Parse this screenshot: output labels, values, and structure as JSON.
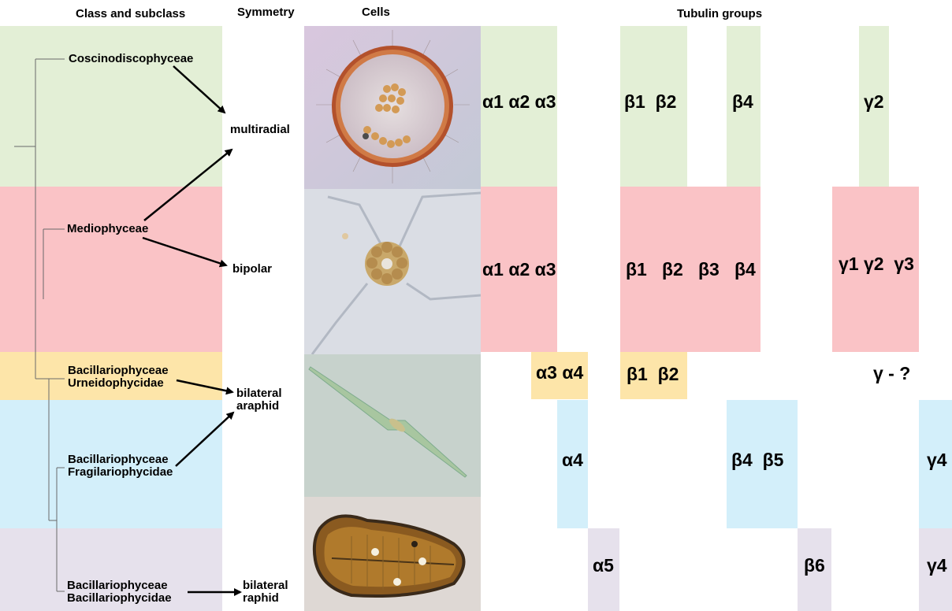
{
  "headers": {
    "class": "Class and subclass",
    "symmetry": "Symmetry",
    "cells": "Cells",
    "tubulin": "Tubulin groups"
  },
  "colors": {
    "green": "#e3efd6",
    "red": "#fac3c6",
    "yellow": "#fde5a9",
    "blue": "#d3effa",
    "purple": "#e6e1ec"
  },
  "classes": {
    "coscino": "Coscinodiscophyceae",
    "medio": "Mediophyceae",
    "bac_urn_1": "Bacillariophyceae",
    "bac_urn_2": "Urneidophycidae",
    "bac_frag_1": "Bacillariophyceae",
    "bac_frag_2": "Fragilariophycidae",
    "bac_bac_1": "Bacillariophyceae",
    "bac_bac_2": "Bacillariophycidae"
  },
  "symmetry": {
    "multiradial": "multiradial",
    "bipolar": "bipolar",
    "araphid_1": "bilateral",
    "araphid_2": "araphid",
    "raphid_1": "bilateral",
    "raphid_2": "raphid"
  },
  "tubulin": {
    "green_alpha": "α1 α2 α3",
    "green_beta12": "β1  β2",
    "green_beta4": "β4",
    "green_gamma": "γ2",
    "red_alpha": "α1 α2 α3",
    "red_beta": "β1   β2   β3   β4",
    "red_gamma": "γ1 γ2  γ3",
    "yellow_alpha": "α3 α4",
    "yellow_beta": "β1  β2",
    "yellow_gamma": "γ - ?",
    "blue_alpha": "α4",
    "blue_beta": "β4  β5",
    "blue_gamma": "γ4",
    "purple_alpha": "α5",
    "purple_beta": "β6",
    "purple_gamma": "γ4"
  }
}
